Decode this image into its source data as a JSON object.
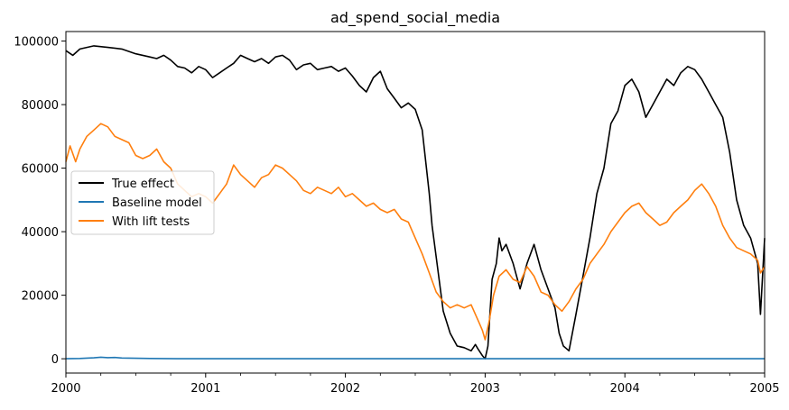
{
  "chart_data": {
    "type": "line",
    "title": "ad_spend_social_media",
    "xlabel": "",
    "ylabel": "",
    "xlim": [
      2000,
      2005
    ],
    "ylim": [
      -4500,
      103000
    ],
    "x_ticks": [
      2000,
      2001,
      2002,
      2003,
      2004,
      2005
    ],
    "x_tick_labels": [
      "2000",
      "2001",
      "2002",
      "2003",
      "2004",
      "2005"
    ],
    "y_ticks": [
      0,
      20000,
      40000,
      60000,
      80000,
      100000
    ],
    "y_tick_labels": [
      "0",
      "20000",
      "40000",
      "60000",
      "80000",
      "100000"
    ],
    "grid": false,
    "legend_position": "center-left",
    "series": [
      {
        "name": "True effect",
        "color": "#000000",
        "x": [
          2000.0,
          2000.05,
          2000.1,
          2000.15,
          2000.2,
          2000.3,
          2000.4,
          2000.5,
          2000.6,
          2000.65,
          2000.7,
          2000.75,
          2000.8,
          2000.85,
          2000.9,
          2000.95,
          2001.0,
          2001.05,
          2001.1,
          2001.15,
          2001.2,
          2001.25,
          2001.3,
          2001.35,
          2001.4,
          2001.45,
          2001.5,
          2001.55,
          2001.6,
          2001.65,
          2001.7,
          2001.75,
          2001.8,
          2001.85,
          2001.9,
          2001.95,
          2002.0,
          2002.05,
          2002.1,
          2002.15,
          2002.2,
          2002.25,
          2002.3,
          2002.35,
          2002.4,
          2002.45,
          2002.5,
          2002.55,
          2002.58,
          2002.6,
          2002.62,
          2002.65,
          2002.7,
          2002.75,
          2002.8,
          2002.85,
          2002.9,
          2002.93,
          2002.95,
          2002.98,
          2003.0,
          2003.02,
          2003.05,
          2003.08,
          2003.1,
          2003.12,
          2003.15,
          2003.2,
          2003.25,
          2003.3,
          2003.35,
          2003.4,
          2003.45,
          2003.5,
          2003.53,
          2003.56,
          2003.6,
          2003.65,
          2003.7,
          2003.75,
          2003.8,
          2003.85,
          2003.9,
          2003.95,
          2004.0,
          2004.05,
          2004.1,
          2004.15,
          2004.2,
          2004.25,
          2004.3,
          2004.35,
          2004.4,
          2004.45,
          2004.5,
          2004.55,
          2004.6,
          2004.65,
          2004.7,
          2004.75,
          2004.8,
          2004.85,
          2004.9,
          2004.95,
          2004.97,
          2005.0
        ],
        "values": [
          97000,
          95500,
          97500,
          98000,
          98500,
          98000,
          97500,
          96000,
          95000,
          94500,
          95500,
          94000,
          92000,
          91500,
          90000,
          92000,
          91000,
          88500,
          90000,
          91500,
          93000,
          95500,
          94500,
          93500,
          94500,
          93000,
          95000,
          95500,
          94000,
          91000,
          92500,
          93000,
          91000,
          91500,
          92000,
          90500,
          91500,
          89000,
          86000,
          84000,
          88500,
          90500,
          85000,
          82000,
          79000,
          80500,
          78500,
          72000,
          60000,
          52000,
          42000,
          32000,
          15000,
          8000,
          4000,
          3500,
          2500,
          4500,
          3000,
          1000,
          0,
          4000,
          25000,
          30000,
          38000,
          34000,
          36000,
          30000,
          22000,
          30000,
          36000,
          28000,
          22000,
          16000,
          8000,
          4000,
          2500,
          14000,
          26000,
          38000,
          52000,
          60000,
          74000,
          78000,
          86000,
          88000,
          84000,
          76000,
          80000,
          84000,
          88000,
          86000,
          90000,
          92000,
          91000,
          88000,
          84000,
          80000,
          76000,
          65000,
          50000,
          42000,
          38000,
          30000,
          14000,
          38000
        ]
      },
      {
        "name": "Baseline model",
        "color": "#1f77b4",
        "x": [
          2000.0,
          2000.1,
          2000.2,
          2000.25,
          2000.3,
          2000.35,
          2000.4,
          2000.5,
          2000.6,
          2000.8,
          2001.0,
          2002.0,
          2003.0,
          2004.0,
          2005.0
        ],
        "values": [
          0,
          100,
          300,
          500,
          350,
          400,
          250,
          150,
          100,
          0,
          0,
          0,
          0,
          0,
          0
        ]
      },
      {
        "name": "With lift tests",
        "color": "#ff7f0e",
        "x": [
          2000.0,
          2000.03,
          2000.07,
          2000.1,
          2000.15,
          2000.2,
          2000.25,
          2000.3,
          2000.35,
          2000.4,
          2000.45,
          2000.5,
          2000.55,
          2000.6,
          2000.65,
          2000.7,
          2000.75,
          2000.8,
          2000.85,
          2000.9,
          2000.95,
          2001.0,
          2001.05,
          2001.1,
          2001.15,
          2001.2,
          2001.25,
          2001.3,
          2001.35,
          2001.4,
          2001.45,
          2001.5,
          2001.55,
          2001.6,
          2001.65,
          2001.7,
          2001.75,
          2001.8,
          2001.85,
          2001.9,
          2001.95,
          2002.0,
          2002.05,
          2002.1,
          2002.15,
          2002.2,
          2002.25,
          2002.3,
          2002.35,
          2002.4,
          2002.45,
          2002.5,
          2002.55,
          2002.6,
          2002.65,
          2002.7,
          2002.75,
          2002.8,
          2002.85,
          2002.9,
          2002.95,
          2002.98,
          2003.0,
          2003.03,
          2003.06,
          2003.1,
          2003.15,
          2003.2,
          2003.25,
          2003.3,
          2003.35,
          2003.4,
          2003.45,
          2003.5,
          2003.55,
          2003.6,
          2003.65,
          2003.7,
          2003.75,
          2003.8,
          2003.85,
          2003.9,
          2003.95,
          2004.0,
          2004.05,
          2004.1,
          2004.15,
          2004.2,
          2004.25,
          2004.3,
          2004.35,
          2004.4,
          2004.45,
          2004.5,
          2004.55,
          2004.6,
          2004.65,
          2004.7,
          2004.75,
          2004.8,
          2004.85,
          2004.9,
          2004.95,
          2004.97,
          2005.0
        ],
        "values": [
          62000,
          67000,
          62000,
          66000,
          70000,
          72000,
          74000,
          73000,
          70000,
          69000,
          68000,
          64000,
          63000,
          64000,
          66000,
          62000,
          60000,
          55000,
          53000,
          51000,
          52000,
          51000,
          49000,
          52000,
          55000,
          61000,
          58000,
          56000,
          54000,
          57000,
          58000,
          61000,
          60000,
          58000,
          56000,
          53000,
          52000,
          54000,
          53000,
          52000,
          54000,
          51000,
          52000,
          50000,
          48000,
          49000,
          47000,
          46000,
          47000,
          44000,
          43000,
          38000,
          33000,
          27000,
          21000,
          18000,
          16000,
          17000,
          16000,
          17000,
          12000,
          9000,
          6000,
          12000,
          20000,
          26000,
          28000,
          25000,
          24000,
          29000,
          26000,
          21000,
          20000,
          17000,
          15000,
          18000,
          22000,
          25000,
          30000,
          33000,
          36000,
          40000,
          43000,
          46000,
          48000,
          49000,
          46000,
          44000,
          42000,
          43000,
          46000,
          48000,
          50000,
          53000,
          55000,
          52000,
          48000,
          42000,
          38000,
          35000,
          34000,
          33000,
          31000,
          27000,
          29000
        ]
      }
    ]
  }
}
